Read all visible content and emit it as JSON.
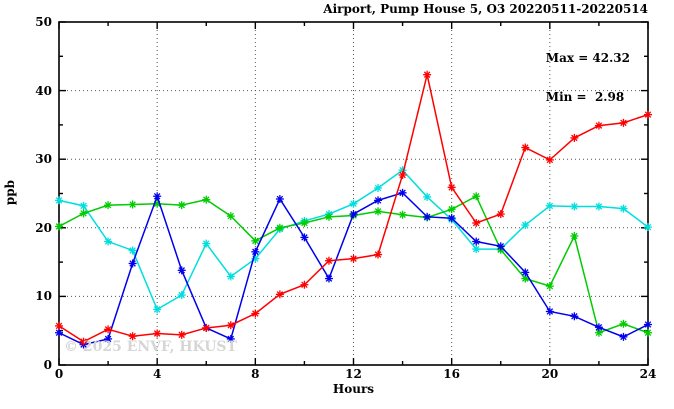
{
  "chart_data": {
    "type": "line",
    "title": "Airport, Pump House 5, O3 20220511-20220514",
    "xlabel": "Hours",
    "ylabel": "ppb",
    "xlim": [
      0,
      24
    ],
    "ylim": [
      0,
      50
    ],
    "xticks_major": [
      0,
      4,
      8,
      12,
      16,
      20,
      24
    ],
    "xticks_minor": [
      2,
      6,
      10,
      14,
      18,
      22
    ],
    "yticks_major": [
      0,
      10,
      20,
      30,
      40,
      50
    ],
    "yticks_minor": [
      5,
      15,
      25,
      35,
      45
    ],
    "grid_x": [
      4,
      8,
      12,
      16,
      20
    ],
    "grid_y": [
      10,
      20,
      30,
      40
    ],
    "grid_on": true,
    "legend_position": "none",
    "x": [
      0,
      1,
      2,
      3,
      4,
      5,
      6,
      7,
      8,
      9,
      10,
      11,
      12,
      13,
      14,
      15,
      16,
      17,
      18,
      19,
      20,
      21,
      22,
      23,
      24
    ],
    "series": [
      {
        "name": "series-cyan",
        "color": "#00dede",
        "values": [
          24.0,
          23.2,
          18.0,
          16.7,
          8.1,
          10.2,
          17.7,
          12.9,
          15.5,
          19.8,
          21.0,
          22.0,
          23.5,
          25.8,
          28.4,
          24.5,
          21.2,
          16.9,
          16.9,
          20.4,
          23.2,
          23.1,
          23.1,
          22.8,
          20.1
        ]
      },
      {
        "name": "series-green",
        "color": "#00cc00",
        "values": [
          20.2,
          22.1,
          23.3,
          23.4,
          23.5,
          23.3,
          24.1,
          21.7,
          18.1,
          20.0,
          20.7,
          21.6,
          21.8,
          22.4,
          21.9,
          21.5,
          22.7,
          24.6,
          16.8,
          12.6,
          11.5,
          18.8,
          4.7,
          6.0,
          4.7
        ]
      },
      {
        "name": "series-blue",
        "color": "#0000ee",
        "values": [
          4.7,
          2.98,
          3.8,
          14.8,
          24.6,
          13.8,
          5.4,
          3.8,
          16.5,
          24.2,
          18.6,
          12.6,
          22.0,
          24.0,
          25.1,
          21.6,
          21.4,
          18.0,
          17.3,
          13.5,
          7.8,
          7.1,
          5.5,
          4.1,
          5.9
        ]
      },
      {
        "name": "series-red",
        "color": "#ff0000",
        "values": [
          5.7,
          3.4,
          5.2,
          4.2,
          4.6,
          4.4,
          5.4,
          5.8,
          7.5,
          10.3,
          11.7,
          15.2,
          15.5,
          16.1,
          27.7,
          42.32,
          25.9,
          20.7,
          22.0,
          31.7,
          29.9,
          33.1,
          34.9,
          35.3,
          36.5
        ]
      }
    ],
    "annotations": {
      "max_label": "Max = 42.32",
      "min_label": "Min =  2.98"
    },
    "watermark": "© 2025 ENVF, HKUST",
    "stats": {
      "max": 42.32,
      "min": 2.98
    }
  }
}
